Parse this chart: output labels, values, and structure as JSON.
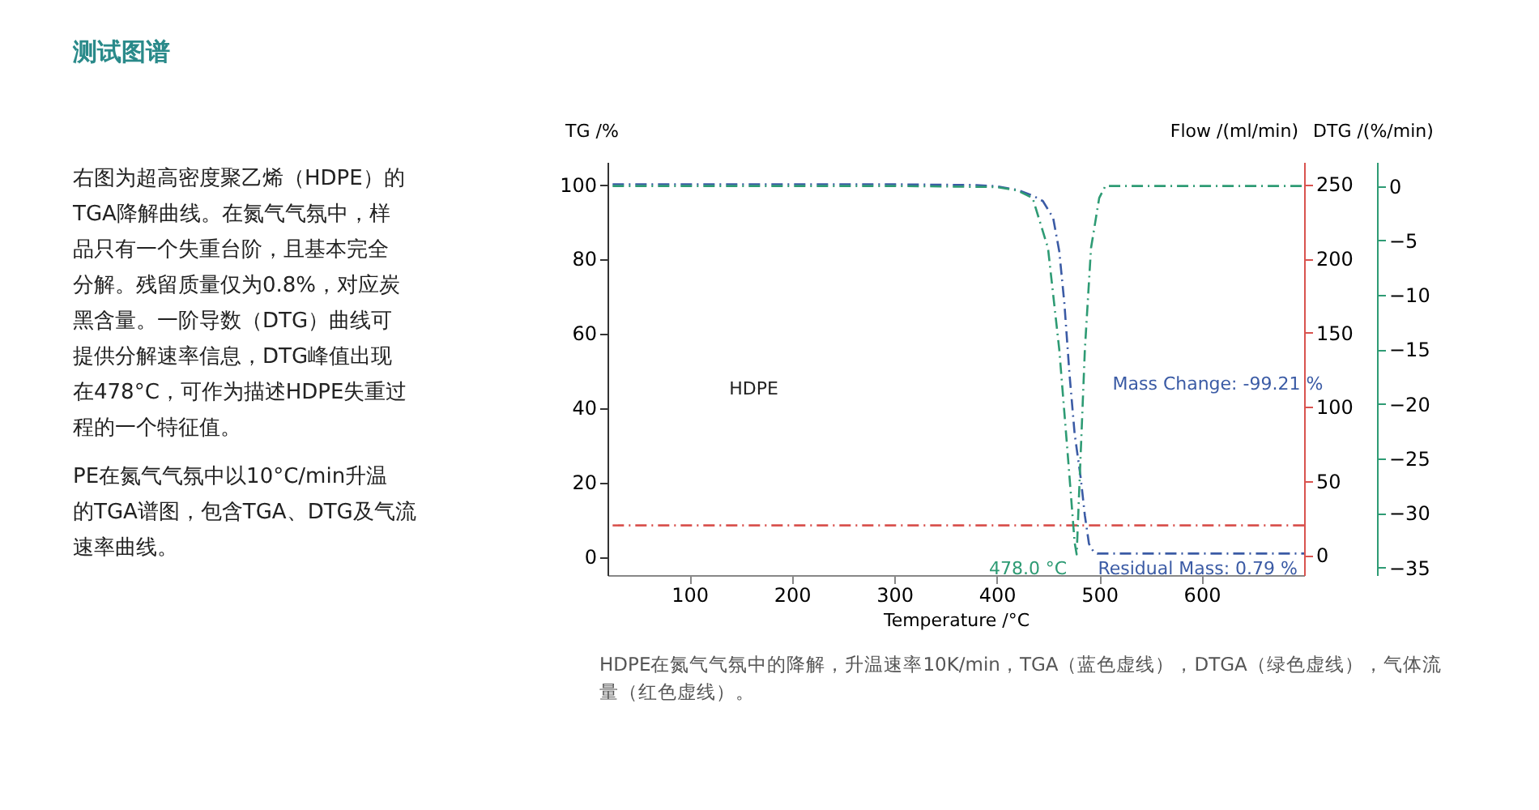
{
  "chart_data": {
    "type": "line",
    "title": "测试图谱",
    "xlabel": "Temperature /°C",
    "ylabel": "TG /%",
    "y2label": "Flow /(ml/min)",
    "y3label": "DTG /(%/min)",
    "xlim": [
      20,
      700
    ],
    "xticks": [
      100,
      200,
      300,
      400,
      500,
      600
    ],
    "ylim": [
      -5,
      106
    ],
    "yticks": [
      0,
      20,
      40,
      60,
      80,
      100
    ],
    "y2lim": [
      -13.5,
      265
    ],
    "y2ticks": [
      0,
      50,
      100,
      150,
      200,
      250
    ],
    "y3lim": [
      -35.7,
      2.2
    ],
    "y3ticks": [
      -35,
      -30,
      -25,
      -20,
      -15,
      -10,
      -5,
      0
    ],
    "line_style": "dashed",
    "series": [
      {
        "color": "#3b5ba5",
        "x": [
          25,
          300,
          380,
          400,
          420,
          435,
          445,
          455,
          461,
          466,
          471,
          476,
          482,
          486,
          490,
          494,
          498,
          505,
          520,
          600,
          700
        ],
        "values": [
          100,
          100,
          99.8,
          99.5,
          98.5,
          97,
          95.5,
          91,
          82,
          68,
          49,
          33,
          21,
          11,
          3.4,
          1.5,
          0.8,
          0.8,
          0.8,
          0.8,
          0.8
        ]
      },
      {
        "color": "#d9534f",
        "axis": "y2",
        "x": [
          25,
          700
        ],
        "values": [
          20,
          20
        ]
      },
      {
        "color": "#2e9b74",
        "axis": "y3",
        "x": [
          25,
          300,
          400,
          420,
          435,
          450,
          461,
          469,
          476,
          478,
          481,
          486,
          492,
          500,
          506,
          600,
          700
        ],
        "values": [
          0,
          0,
          -0.1,
          -0.4,
          -1.1,
          -5.7,
          -15,
          -24.3,
          -32.7,
          -33.8,
          -26.7,
          -15,
          -5.7,
          -1.1,
          0,
          0,
          0
        ]
      }
    ],
    "annotations": [
      "右图为超高密度聚乙烯（HDPE）的TGA降解曲线。在氮气气氛中，样品只有一个失重台阶，且基本完全分解。残留质量仅为0.8%，对应炭黑含量。一阶导数（DTG）曲线可提供分解速率信息，DTG峰值出现在478°C，可作为描述HDPE失重过程的一个特征值。",
      "PE在氮气气氛中以10°C/min升温的TGA谱图，包含TGA、DTG及气流速率曲线。",
      "HDPE在氮气气氛中的降解，升温速率10K/min，TGA（蓝色虚线），DTGA（绿色虚线），气体流量（红色虚线）。",
      "HDPE",
      "Mass Change: -99.21 %",
      {
        "text": "478.0 °C",
        "x": 478,
        "y": 0
      },
      {
        "text": "Residual Mass: 0.79 %",
        "x": 700,
        "y": 0.8
      }
    ]
  }
}
